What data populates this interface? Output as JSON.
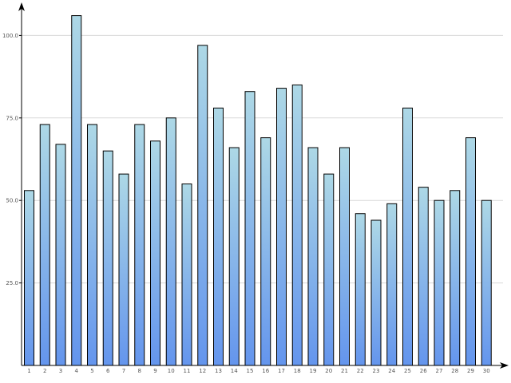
{
  "chart_data": {
    "type": "bar",
    "categories": [
      "1",
      "2",
      "3",
      "4",
      "5",
      "6",
      "7",
      "8",
      "9",
      "10",
      "11",
      "12",
      "13",
      "14",
      "15",
      "16",
      "17",
      "18",
      "19",
      "20",
      "21",
      "22",
      "23",
      "24",
      "25",
      "26",
      "27",
      "28",
      "29",
      "30"
    ],
    "values": [
      53,
      73,
      67,
      106,
      73,
      65,
      58,
      73,
      68,
      75,
      55,
      97,
      78,
      66,
      83,
      69,
      84,
      85,
      66,
      58,
      66,
      46,
      44,
      49,
      78,
      54,
      50,
      53,
      69,
      50
    ],
    "y_ticks": [
      "100.0",
      "75.0",
      "50.0",
      "25.0"
    ],
    "ylim": [
      0,
      110
    ],
    "grid": true,
    "title": "",
    "xlabel": "",
    "ylabel": "",
    "colors": {
      "bar_top": "#add8e6",
      "bar_bottom": "#6495ed",
      "bar_stroke": "#000000",
      "grid": "#d9d9d9"
    }
  }
}
